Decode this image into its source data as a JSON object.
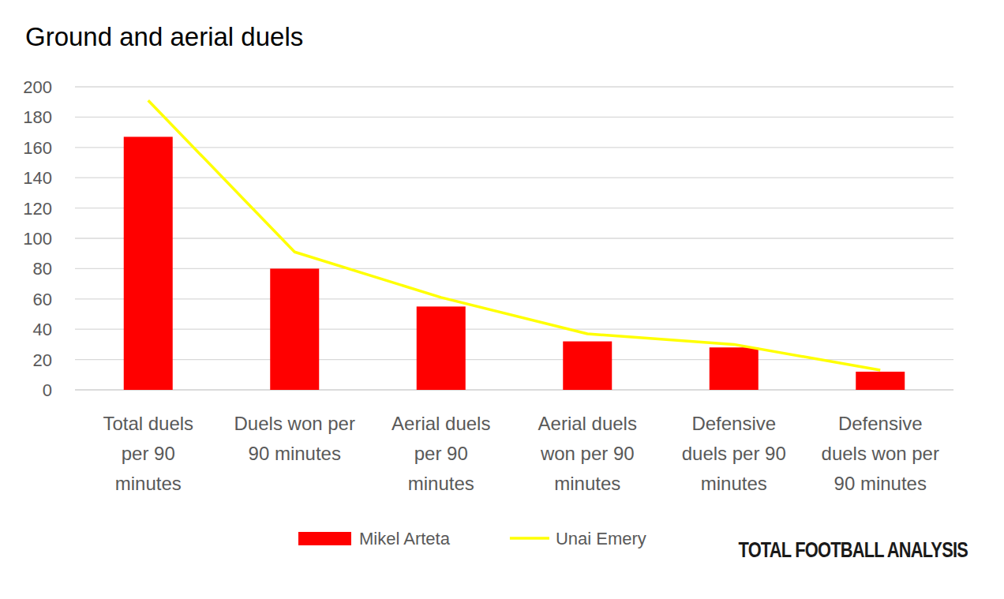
{
  "chart_data": {
    "type": "bar",
    "title": "Ground and aerial duels",
    "categories": [
      "Total duels per 90 minutes",
      "Duels won per 90 minutes",
      "Aerial duels per 90 minutes",
      "Aerial duels won per 90 minutes",
      "Defensive duels per 90 minutes",
      "Defensive duels won per 90 minutes"
    ],
    "series": [
      {
        "name": "Mikel Arteta",
        "type": "bar",
        "color": "#ff0000",
        "values": [
          167,
          80,
          55,
          32,
          28,
          12
        ]
      },
      {
        "name": "Unai Emery",
        "type": "line",
        "color": "#ffff00",
        "values": [
          191,
          91,
          61,
          37,
          30,
          13
        ]
      }
    ],
    "ylim": [
      0,
      200
    ],
    "yticks": [
      0,
      20,
      40,
      60,
      80,
      100,
      120,
      140,
      160,
      180,
      200
    ],
    "grid": true,
    "legend": "bottom",
    "annotations": [
      "TOTAL FOOTBALL ANALYSIS"
    ]
  }
}
